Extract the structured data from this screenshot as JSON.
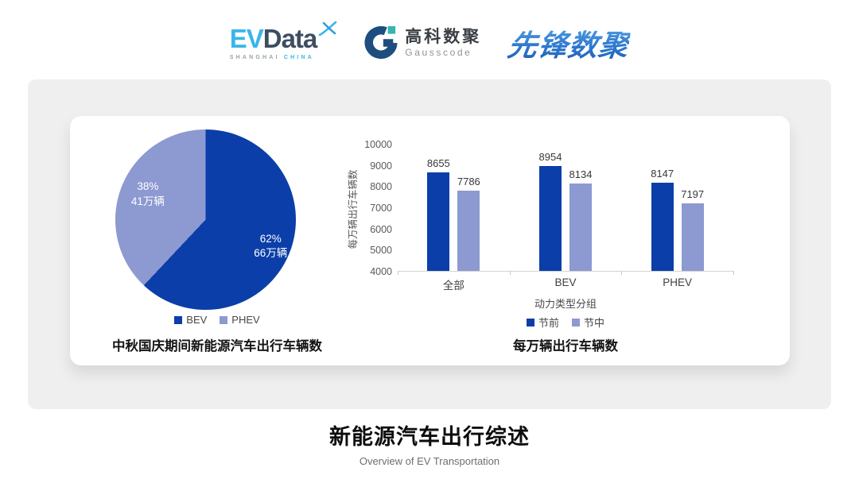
{
  "header": {
    "evdata": {
      "ev": "EV",
      "data": "Data",
      "sub_left": "SHANGHAI",
      "sub_right": "CHINA"
    },
    "gausscode": {
      "cn": "高科数聚",
      "en": "Gausscode"
    },
    "pioneer": {
      "name": "先锋数聚"
    }
  },
  "colors": {
    "primary_blue": "#0b3ea8",
    "light_periwinkle": "#8d99d1",
    "evdata_cyan": "#3ab5e9",
    "evdata_dark": "#3d4e60",
    "gausscode_navy": "#1d4e7e",
    "gausscode_teal": "#35b5ad",
    "pioneer_blue": "#2a74c8"
  },
  "chart_data": [
    {
      "type": "pie",
      "title": "中秋国庆期间新能源汽车出行车辆数",
      "legend_position": "bottom",
      "slices": [
        {
          "label": "BEV",
          "percent": 62,
          "value_lines": [
            "62%",
            "66万辆"
          ],
          "color": "#0b3ea8",
          "label_pos": {
            "x": 86,
            "y": 65
          }
        },
        {
          "label": "PHEV",
          "percent": 38,
          "value_lines": [
            "38%",
            "41万辆"
          ],
          "color": "#8d99d1",
          "label_pos": {
            "x": 18,
            "y": 36
          }
        }
      ]
    },
    {
      "type": "bar",
      "title": "每万辆出行车辆数",
      "xlabel": "动力类型分组",
      "ylabel": "每万辆出行车辆数",
      "categories": [
        "全部",
        "BEV",
        "PHEV"
      ],
      "series": [
        {
          "name": "节前",
          "color": "#0b3ea8",
          "values": [
            8655,
            8954,
            8147
          ]
        },
        {
          "name": "节中",
          "color": "#8d99d1",
          "values": [
            7786,
            8134,
            7197
          ]
        }
      ],
      "ylim": [
        4000,
        10000
      ],
      "ytick_step": 1000,
      "grid": false,
      "legend_position": "bottom"
    }
  ],
  "footer": {
    "title": "新能源汽车出行综述",
    "subtitle": "Overview of EV Transportation"
  }
}
